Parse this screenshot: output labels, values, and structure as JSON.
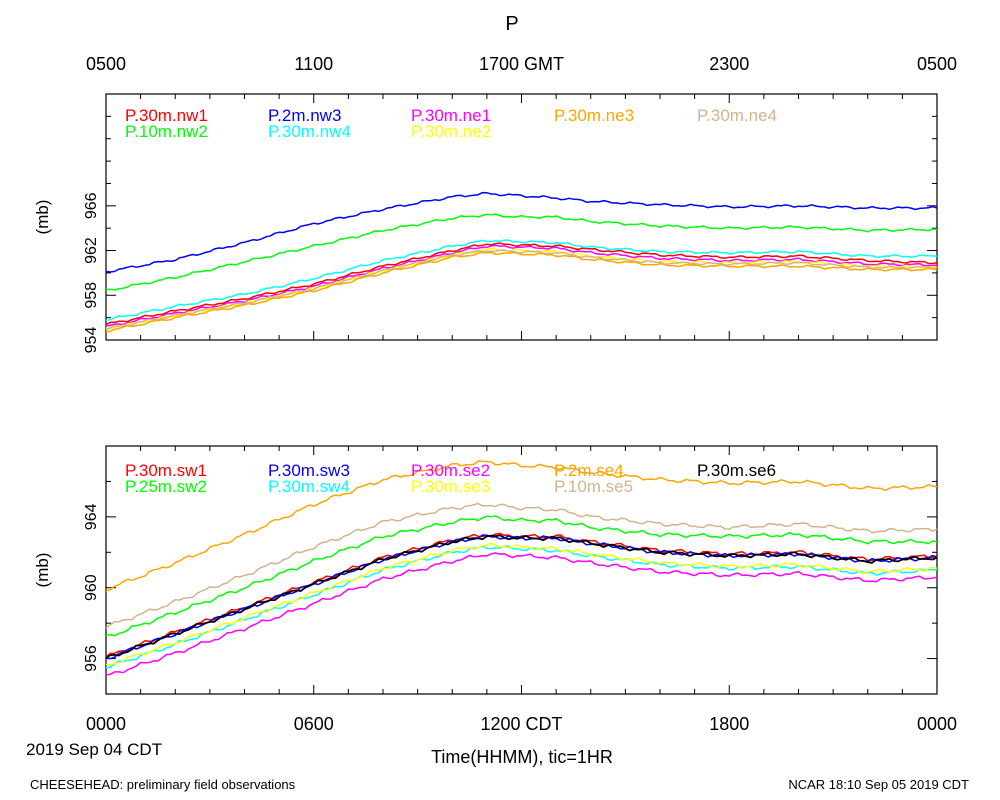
{
  "title": "P",
  "top_axis_ticks": [
    "0500",
    "1100",
    "1700 GMT",
    "2300",
    "0500"
  ],
  "bottom_axis_ticks": [
    "0000",
    "0600",
    "1200 CDT",
    "1800",
    "0000"
  ],
  "date_label": "2019 Sep 04 CDT",
  "xlabel": "Time(HHMM), tic=1HR",
  "footer_left": "CHEESEHEAD: preliminary field observations",
  "footer_right": "NCAR 18:10 Sep 05 2019 CDT",
  "chart_data": [
    {
      "type": "line",
      "panel": "top",
      "ylabel": "(mb)",
      "ylim": [
        954,
        976
      ],
      "yticks": [
        954,
        958,
        962,
        966
      ],
      "xlim": [
        0,
        24
      ],
      "x": [
        0,
        2,
        4,
        6,
        8,
        10,
        11,
        12,
        13,
        14,
        16,
        18,
        20,
        22,
        24
      ],
      "series": [
        {
          "name": "P.30m.nw1",
          "color": "#ff0000",
          "values": [
            955.4,
            956.6,
            957.7,
            959.0,
            960.6,
            962.0,
            962.6,
            962.5,
            962.4,
            962.1,
            961.6,
            961.4,
            961.5,
            961.1,
            960.9
          ]
        },
        {
          "name": "P.10m.nw2",
          "color": "#00ff00",
          "values": [
            958.4,
            959.6,
            961.0,
            962.4,
            963.8,
            964.9,
            965.2,
            965.0,
            965.0,
            964.6,
            964.2,
            964.0,
            964.1,
            963.8,
            963.9
          ]
        },
        {
          "name": "P.2m.nw3",
          "color": "#0000ff",
          "values": [
            960.1,
            961.2,
            962.7,
            964.4,
            965.7,
            966.8,
            967.1,
            966.9,
            966.7,
            966.4,
            966.1,
            965.9,
            966.0,
            965.8,
            965.8
          ]
        },
        {
          "name": "P.30m.nw4",
          "color": "#00ffff",
          "values": [
            955.8,
            957.0,
            958.1,
            959.5,
            961.1,
            962.4,
            962.9,
            962.8,
            962.7,
            962.3,
            961.9,
            961.8,
            961.9,
            961.5,
            961.5
          ]
        },
        {
          "name": "P.30m.ne1",
          "color": "#ff00ff",
          "values": [
            955.2,
            956.4,
            957.5,
            958.8,
            960.4,
            961.8,
            962.4,
            962.3,
            962.2,
            961.8,
            961.3,
            961.1,
            961.2,
            960.8,
            960.7
          ]
        },
        {
          "name": "P.30m.ne2",
          "color": "#ffff00",
          "values": [
            955.0,
            956.2,
            957.3,
            958.6,
            960.2,
            961.6,
            962.1,
            962.0,
            961.9,
            961.5,
            961.0,
            960.9,
            961.0,
            960.6,
            960.5
          ]
        },
        {
          "name": "P.30m.ne3",
          "color": "#ffa500",
          "values": [
            954.8,
            956.0,
            957.1,
            958.4,
            960.0,
            961.4,
            961.8,
            961.7,
            961.6,
            961.2,
            960.7,
            960.6,
            960.6,
            960.3,
            960.3
          ]
        },
        {
          "name": "P.30m.ne4",
          "color": "#d2b48c",
          "values": [
            955.0,
            956.2,
            957.3,
            958.6,
            960.2,
            961.6,
            962.0,
            961.9,
            961.8,
            961.4,
            960.9,
            960.8,
            960.9,
            960.5,
            960.5
          ]
        }
      ]
    },
    {
      "type": "line",
      "panel": "bottom",
      "ylabel": "(mb)",
      "ylim": [
        954,
        968
      ],
      "yticks": [
        956,
        960,
        964
      ],
      "xlim": [
        0,
        24
      ],
      "x": [
        0,
        2,
        4,
        6,
        8,
        10,
        11,
        12,
        13,
        14,
        16,
        18,
        20,
        22,
        24
      ],
      "series": [
        {
          "name": "P.30m.sw1",
          "color": "#ff0000",
          "values": [
            956.1,
            957.5,
            958.9,
            960.3,
            961.7,
            962.7,
            963.0,
            962.9,
            962.9,
            962.6,
            962.1,
            961.9,
            962.0,
            961.6,
            961.8
          ]
        },
        {
          "name": "P.25m.sw2",
          "color": "#00ff00",
          "values": [
            957.2,
            958.6,
            960.0,
            961.5,
            962.9,
            963.7,
            964.0,
            963.8,
            963.8,
            963.4,
            963.0,
            962.9,
            963.0,
            962.6,
            962.6
          ]
        },
        {
          "name": "P.30m.sw3",
          "color": "#0000ff",
          "values": [
            956.0,
            957.4,
            958.8,
            960.2,
            961.6,
            962.6,
            962.9,
            962.8,
            962.8,
            962.5,
            962.0,
            961.8,
            961.9,
            961.5,
            961.7
          ]
        },
        {
          "name": "P.30m.sw4",
          "color": "#00ffff",
          "values": [
            955.5,
            956.8,
            958.2,
            959.6,
            961.0,
            962.0,
            962.3,
            962.2,
            962.1,
            961.8,
            961.3,
            961.1,
            961.2,
            960.8,
            961.0
          ]
        },
        {
          "name": "P.30m.se2",
          "color": "#ff00ff",
          "values": [
            955.0,
            956.3,
            957.7,
            959.1,
            960.5,
            961.5,
            961.9,
            961.8,
            961.7,
            961.4,
            960.9,
            960.7,
            960.8,
            960.4,
            960.6
          ]
        },
        {
          "name": "P.30m.se3",
          "color": "#ffff00",
          "values": [
            955.6,
            956.9,
            958.3,
            959.7,
            961.1,
            962.1,
            962.4,
            962.3,
            962.2,
            961.9,
            961.4,
            961.2,
            961.3,
            960.9,
            961.1
          ]
        },
        {
          "name": "P.2m.se4",
          "color": "#ffa500",
          "values": [
            959.9,
            961.4,
            963.0,
            964.7,
            966.1,
            966.9,
            967.1,
            966.9,
            966.8,
            966.5,
            966.1,
            965.9,
            966.0,
            965.6,
            965.7
          ]
        },
        {
          "name": "P.10m.se5",
          "color": "#d2b48c",
          "values": [
            957.8,
            959.2,
            960.7,
            962.3,
            963.7,
            964.5,
            964.7,
            964.5,
            964.4,
            964.0,
            963.6,
            963.4,
            963.6,
            963.2,
            963.3
          ]
        },
        {
          "name": "P.30m.se6",
          "color": "#000000",
          "values": [
            956.0,
            957.4,
            958.8,
            960.2,
            961.6,
            962.6,
            962.9,
            962.8,
            962.8,
            962.5,
            962.0,
            961.8,
            961.9,
            961.5,
            961.7
          ]
        }
      ]
    }
  ]
}
